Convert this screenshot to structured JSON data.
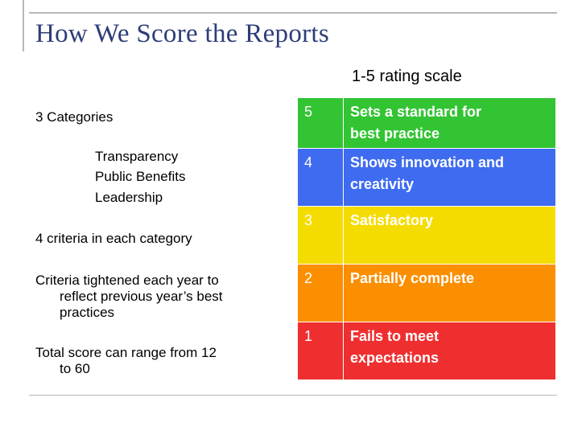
{
  "slide": {
    "title": "How We Score the Reports",
    "scale_caption": "1-5 rating scale"
  },
  "left_column": {
    "categories_heading": "3 Categories",
    "categories": [
      "Transparency",
      "Public Benefits",
      "Leadership"
    ],
    "criteria_line": "4 criteria in each category",
    "tightened_line_1": "Criteria tightened each year to",
    "tightened_line_2": "reflect previous year’s best",
    "tightened_line_3": "practices",
    "total_line_1": "Total score can range from 12",
    "total_line_2": "to 60"
  },
  "rating_scale": [
    {
      "score": "5",
      "label_line_1": "Sets a standard for",
      "label_line_2": "best practice",
      "color": "#33c433"
    },
    {
      "score": "4",
      "label_line_1": "Shows innovation and",
      "label_line_2": "creativity",
      "color": "#3e6bf0"
    },
    {
      "score": "3",
      "label_line_1": "Satisfactory",
      "label_line_2": "",
      "color": "#f5dc00"
    },
    {
      "score": "2",
      "label_line_1": "Partially complete",
      "label_line_2": "",
      "color": "#fb8f00"
    },
    {
      "score": "1",
      "label_line_1": "Fails to meet",
      "label_line_2": "expectations",
      "color": "#ef2f2f"
    }
  ]
}
